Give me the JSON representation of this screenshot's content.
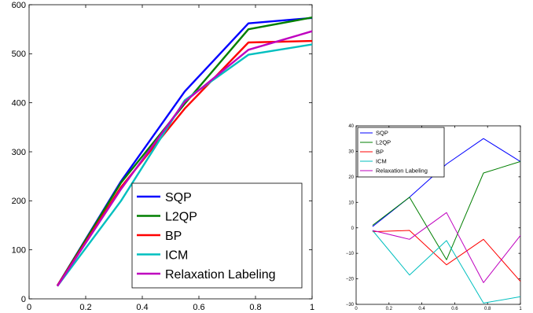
{
  "chart_data": [
    {
      "type": "line",
      "x": [
        0.1,
        0.325,
        0.55,
        0.775,
        1.0
      ],
      "xlim": [
        0,
        1
      ],
      "ylim": [
        0,
        600
      ],
      "xticks": [
        0,
        0.2,
        0.4,
        0.6,
        0.8,
        1
      ],
      "xtick_labels": [
        "0",
        "0.2",
        "0.4",
        "0.6",
        "0.8",
        "1"
      ],
      "yticks": [
        0,
        100,
        200,
        300,
        400,
        500,
        600
      ],
      "ytick_labels": [
        "0",
        "100",
        "200",
        "300",
        "400",
        "500",
        "600"
      ],
      "grid": false,
      "legend_position": "bottom-right",
      "series": [
        {
          "name": "SQP",
          "color": "#0000ff",
          "values": [
            27,
            240,
            423,
            562,
            573
          ]
        },
        {
          "name": "L2QP",
          "color": "#007f00",
          "values": [
            27,
            237,
            398,
            550,
            574
          ]
        },
        {
          "name": "BP",
          "color": "#ff0000",
          "values": [
            27,
            228,
            388,
            523,
            526
          ]
        },
        {
          "name": "ICM",
          "color": "#00bfbf",
          "values": [
            26,
            200,
            405,
            498,
            519
          ]
        },
        {
          "name": "Relaxation Labeling",
          "color": "#bf00bf",
          "values": [
            26,
            224,
            402,
            508,
            546
          ]
        }
      ]
    },
    {
      "type": "line",
      "x": [
        0.1,
        0.325,
        0.55,
        0.775,
        1.0
      ],
      "xlim": [
        0,
        1
      ],
      "ylim": [
        -30,
        40
      ],
      "xticks": [
        0,
        0.2,
        0.4,
        0.6,
        0.8,
        1
      ],
      "xtick_labels": [
        "0",
        "0.2",
        "0.4",
        "0.6",
        "0.8",
        "1"
      ],
      "yticks": [
        -30,
        -20,
        -10,
        0,
        10,
        20,
        30,
        40
      ],
      "ytick_labels": [
        "−30",
        "−20",
        "−10",
        "0",
        "10",
        "20",
        "30",
        "40"
      ],
      "grid": false,
      "legend_position": "top-left",
      "series": [
        {
          "name": "SQP",
          "color": "#0000ff",
          "values": [
            0.5,
            12,
            25,
            35,
            26
          ]
        },
        {
          "name": "L2QP",
          "color": "#007f00",
          "values": [
            1,
            12,
            -12.5,
            21.5,
            26
          ]
        },
        {
          "name": "BP",
          "color": "#ff0000",
          "values": [
            -1.5,
            -1,
            -14.5,
            -4.5,
            -21
          ]
        },
        {
          "name": "ICM",
          "color": "#00bfbf",
          "values": [
            -1,
            -18.5,
            -5,
            -29.5,
            -27
          ]
        },
        {
          "name": "Relaxation Labeling",
          "color": "#bf00bf",
          "values": [
            -1,
            -4.5,
            6,
            -21.5,
            -3
          ]
        }
      ]
    }
  ]
}
